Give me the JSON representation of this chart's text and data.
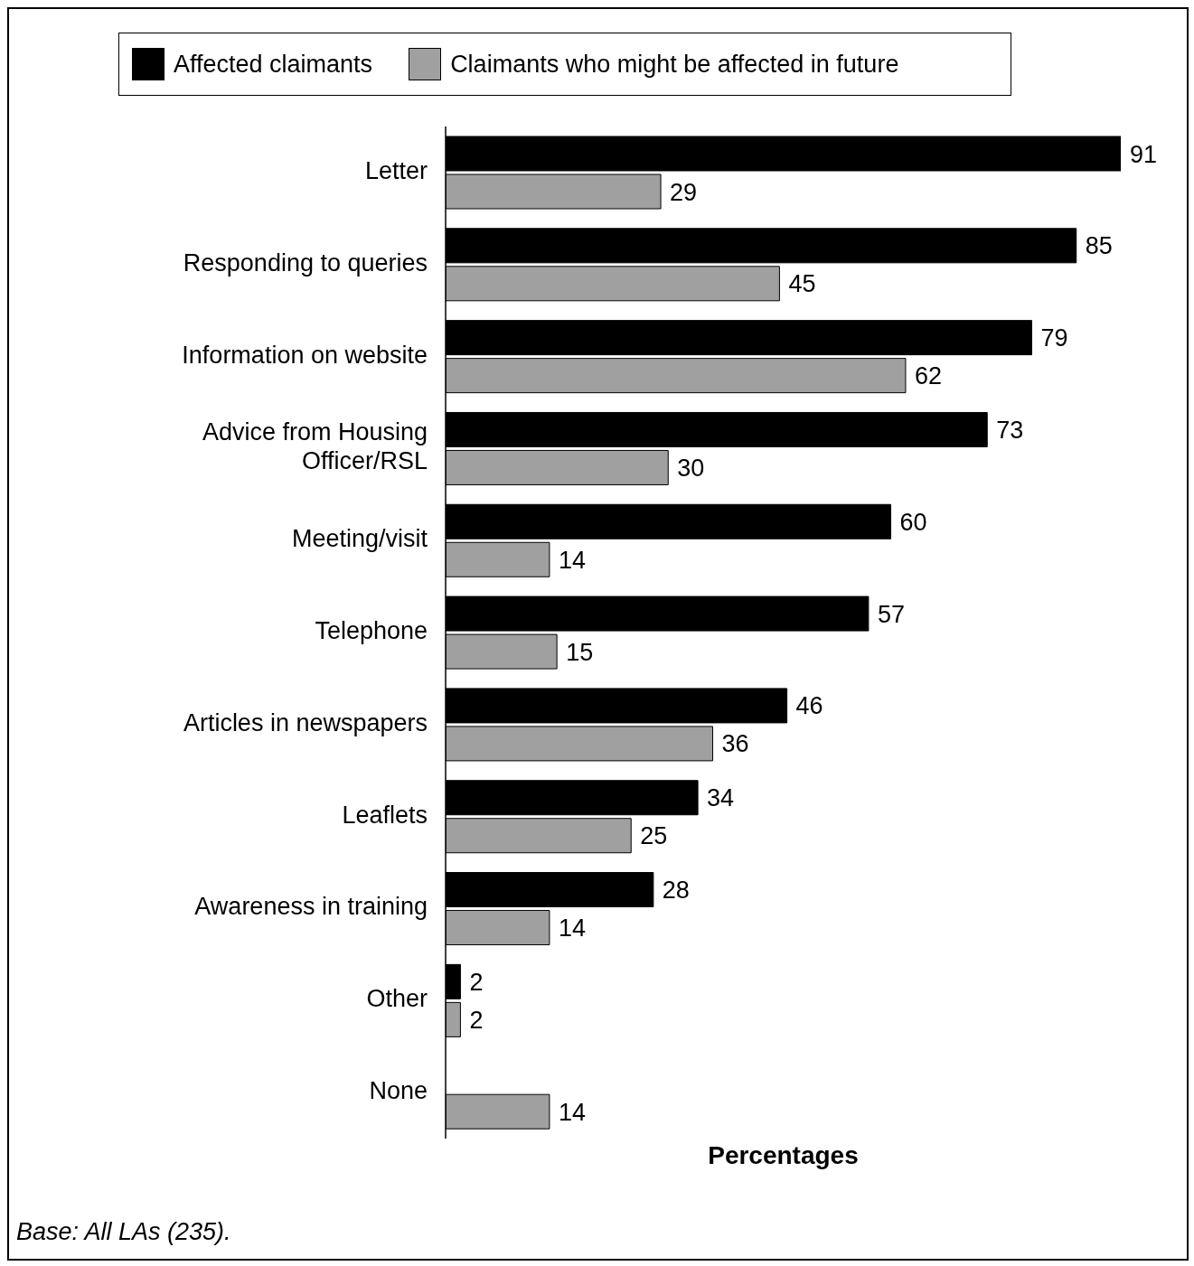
{
  "chart_data": {
    "type": "bar",
    "orientation": "horizontal",
    "categories": [
      "Letter",
      "Responding to queries",
      "Information on website",
      "Advice from Housing Officer/RSL",
      "Meeting/visit",
      "Telephone",
      "Articles in newspapers",
      "Leaflets",
      "Awareness in training",
      "Other",
      "None"
    ],
    "series": [
      {
        "name": "Affected claimants",
        "color": "#000000",
        "values": [
          91,
          85,
          79,
          73,
          60,
          57,
          46,
          34,
          28,
          2,
          null
        ]
      },
      {
        "name": "Claimants who might be affected in future",
        "color": "#a0a0a0",
        "values": [
          29,
          45,
          62,
          30,
          14,
          15,
          36,
          25,
          14,
          2,
          14
        ]
      }
    ],
    "data_labels": true,
    "legend": "top",
    "grid": false,
    "xlabel": "Percentages",
    "annotations": [
      "Base: All LAs (235)."
    ]
  }
}
